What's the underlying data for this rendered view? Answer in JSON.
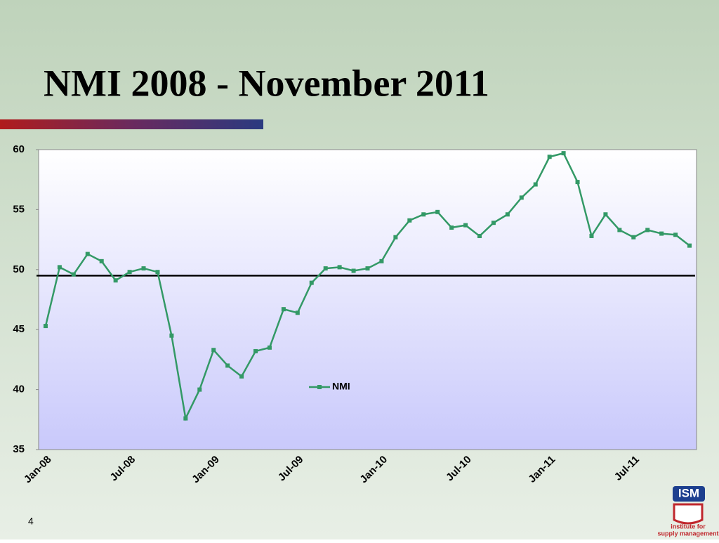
{
  "chart_data": {
    "type": "line",
    "title": "NMI  2008 - November 2011",
    "categories": [
      "Jan-08",
      null,
      null,
      null,
      null,
      null,
      "Jul-08",
      null,
      null,
      null,
      null,
      null,
      "Jan-09",
      null,
      null,
      null,
      null,
      null,
      "Jul-09",
      null,
      null,
      null,
      null,
      null,
      "Jan-10",
      null,
      null,
      null,
      null,
      null,
      "Jul-10",
      null,
      null,
      null,
      null,
      null,
      "Jan-11",
      null,
      null,
      null,
      null,
      null,
      "Jul-11",
      null,
      null,
      null,
      null
    ],
    "series": [
      {
        "name": "NMI",
        "color": "#339966",
        "values": [
          45.3,
          50.2,
          49.6,
          51.3,
          50.7,
          49.1,
          49.8,
          50.1,
          49.8,
          44.5,
          37.6,
          40.0,
          43.3,
          42.0,
          41.1,
          43.2,
          43.5,
          46.7,
          46.4,
          48.9,
          50.1,
          50.2,
          49.9,
          50.1,
          50.7,
          52.7,
          54.1,
          54.6,
          54.8,
          53.5,
          53.7,
          52.8,
          53.9,
          54.6,
          56.0,
          57.1,
          59.4,
          59.7,
          57.3,
          52.8,
          54.6,
          53.3,
          52.7,
          53.3,
          53.0,
          52.9,
          52.0
        ]
      }
    ],
    "ylim": [
      35,
      60
    ],
    "yticks": [
      35,
      40,
      45,
      50,
      55,
      60
    ],
    "reference_line": 49.5,
    "grid": false,
    "legend": "center"
  },
  "slide": {
    "page_number": "4",
    "logo_text": "ISM",
    "logo_caption_1": "institute for",
    "logo_caption_2": "supply management"
  }
}
